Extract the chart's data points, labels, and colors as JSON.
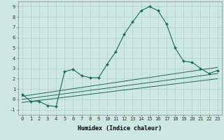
{
  "title": "",
  "xlabel": "Humidex (Indice chaleur)",
  "ylabel": "",
  "background_color": "#cce8e0",
  "grid_color": "#aacccc",
  "line_color": "#1a6b5a",
  "xlim": [
    -0.5,
    23.5
  ],
  "ylim": [
    -1.5,
    9.5
  ],
  "xticks": [
    0,
    1,
    2,
    3,
    4,
    5,
    6,
    7,
    8,
    9,
    10,
    11,
    12,
    13,
    14,
    15,
    16,
    17,
    18,
    19,
    20,
    21,
    22,
    23
  ],
  "yticks": [
    -1,
    0,
    1,
    2,
    3,
    4,
    5,
    6,
    7,
    8,
    9
  ],
  "series": [
    {
      "x": [
        0,
        1,
        2,
        3,
        4,
        5,
        6,
        7,
        8,
        9,
        10,
        11,
        12,
        13,
        14,
        15,
        16,
        17,
        18,
        19,
        20,
        21,
        22,
        23
      ],
      "y": [
        0.5,
        -0.2,
        -0.2,
        -0.6,
        -0.7,
        2.7,
        2.9,
        2.3,
        2.1,
        2.1,
        3.4,
        4.6,
        6.3,
        7.5,
        8.6,
        9.0,
        8.6,
        7.3,
        5.0,
        3.7,
        3.6,
        3.0,
        2.5,
        2.8
      ],
      "marker": "D",
      "markersize": 2.0,
      "linewidth": 0.8
    },
    {
      "x": [
        0,
        23
      ],
      "y": [
        0.3,
        3.1
      ],
      "marker": null,
      "markersize": 0,
      "linewidth": 0.7
    },
    {
      "x": [
        0,
        23
      ],
      "y": [
        0.0,
        2.5
      ],
      "marker": null,
      "markersize": 0,
      "linewidth": 0.7
    },
    {
      "x": [
        0,
        23
      ],
      "y": [
        -0.3,
        2.0
      ],
      "marker": null,
      "markersize": 0,
      "linewidth": 0.7
    }
  ],
  "tick_fontsize": 5.0,
  "xlabel_fontsize": 6.0,
  "xlabel_fontweight": "bold"
}
